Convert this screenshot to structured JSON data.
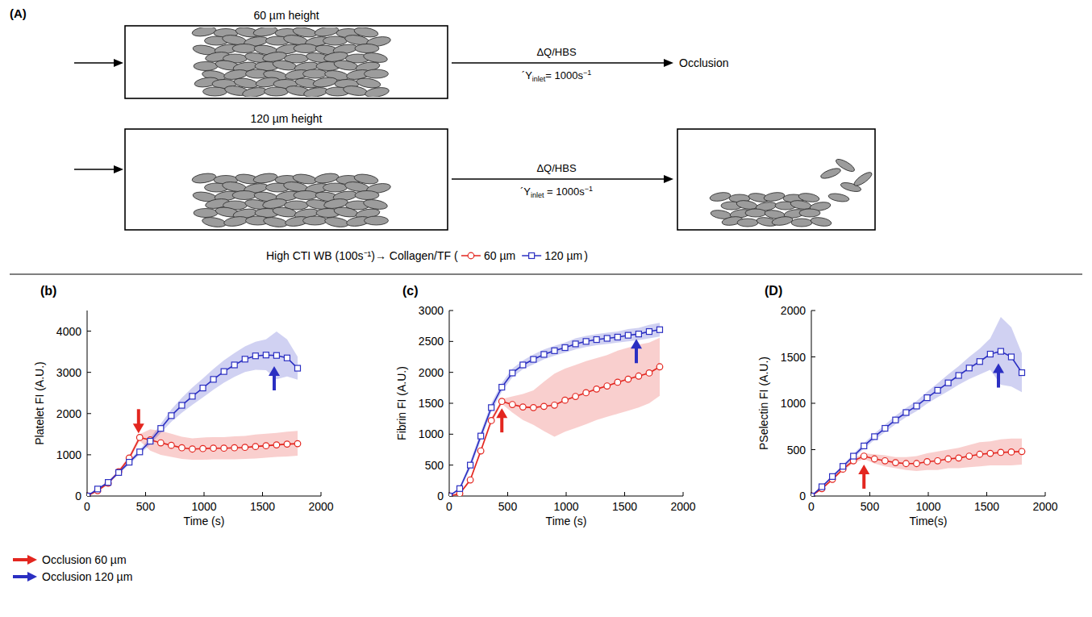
{
  "panel_a": {
    "label": "(A)",
    "channels": [
      {
        "height_label": "60 µm height",
        "flow_label": "ΔQ/HBS",
        "shear_symbol": "´Y",
        "shear_sub": "inlet",
        "shear_value": "= 1000s",
        "shear_exp": "−1",
        "outcome": "Occlusion"
      },
      {
        "height_label": "120 µm height",
        "flow_label": "ΔQ/HBS",
        "shear_symbol": "´Y",
        "shear_sub": "inlet",
        "shear_value": " = 1000s",
        "shear_exp": "−1"
      }
    ]
  },
  "header": {
    "text": "High CTI WB (100s⁻¹)→ Collagen/TF (",
    "close": ")"
  },
  "occlusion_legend": [
    {
      "label": "Occlusion 60 µm",
      "color": "#e3261f"
    },
    {
      "label": "Occlusion 120 µm",
      "color": "#2b2fc2"
    }
  ],
  "chart_data": [
    {
      "type": "line",
      "panel": "(b)",
      "x_label": "Time (s)",
      "y_label": "Platelet FI (A.U.)",
      "x": [
        0,
        90,
        180,
        270,
        360,
        450,
        540,
        630,
        720,
        810,
        900,
        990,
        1080,
        1170,
        1260,
        1350,
        1440,
        1530,
        1620,
        1710,
        1800
      ],
      "xlim": [
        0,
        2000
      ],
      "xticks": [
        0,
        500,
        1000,
        1500,
        2000
      ],
      "ylim": [
        0,
        4500
      ],
      "yticks": [
        0,
        1000,
        2000,
        3000,
        4000
      ],
      "grid": false,
      "series": [
        {
          "name": "60 µm",
          "color": "#e3261f",
          "marker": "circle",
          "values": [
            0,
            130,
            310,
            590,
            920,
            1420,
            1360,
            1290,
            1230,
            1170,
            1140,
            1150,
            1160,
            1160,
            1170,
            1180,
            1200,
            1220,
            1240,
            1260,
            1270
          ],
          "lower": [
            0,
            110,
            280,
            550,
            860,
            1340,
            1100,
            1000,
            950,
            900,
            880,
            880,
            890,
            890,
            890,
            900,
            910,
            930,
            950,
            960,
            980
          ],
          "upper": [
            0,
            150,
            340,
            630,
            980,
            1500,
            1620,
            1580,
            1510,
            1440,
            1400,
            1420,
            1430,
            1430,
            1450,
            1460,
            1490,
            1510,
            1530,
            1560,
            1580
          ],
          "occlusion": {
            "x": 440,
            "y": 1520
          }
        },
        {
          "name": "120 µm",
          "color": "#2b2fc2",
          "marker": "square",
          "values": [
            0,
            170,
            330,
            570,
            820,
            1070,
            1330,
            1640,
            1950,
            2200,
            2420,
            2620,
            2830,
            3020,
            3180,
            3320,
            3400,
            3420,
            3410,
            3350,
            3100
          ],
          "lower": [
            0,
            150,
            300,
            530,
            770,
            1010,
            1250,
            1530,
            1800,
            2020,
            2210,
            2390,
            2580,
            2750,
            2890,
            3010,
            3060,
            3050,
            2830,
            2900,
            2820
          ],
          "upper": [
            0,
            190,
            360,
            610,
            870,
            1130,
            1410,
            1750,
            2100,
            2380,
            2630,
            2850,
            3080,
            3290,
            3470,
            3630,
            3740,
            3800,
            3990,
            3800,
            3380
          ],
          "occlusion": {
            "x": 1600,
            "y": 3150
          }
        }
      ]
    },
    {
      "type": "line",
      "panel": "(c)",
      "x_label": "Time (s)",
      "y_label": "Fibrin FI (A.U.)",
      "x": [
        0,
        90,
        180,
        270,
        360,
        450,
        540,
        630,
        720,
        810,
        900,
        990,
        1080,
        1170,
        1260,
        1350,
        1440,
        1530,
        1620,
        1710,
        1800
      ],
      "xlim": [
        0,
        2000
      ],
      "xticks": [
        0,
        500,
        1000,
        1500,
        2000
      ],
      "ylim": [
        0,
        3000
      ],
      "yticks": [
        0,
        500,
        1000,
        1500,
        2000,
        2500,
        3000
      ],
      "grid": false,
      "series": [
        {
          "color": "#e3261f",
          "marker": "circle",
          "values": [
            0,
            40,
            260,
            730,
            1220,
            1530,
            1480,
            1440,
            1430,
            1450,
            1470,
            1550,
            1610,
            1670,
            1730,
            1780,
            1840,
            1890,
            1940,
            1990,
            2090
          ],
          "lower": [
            0,
            30,
            230,
            690,
            1170,
            1490,
            1350,
            1230,
            1150,
            1050,
            960,
            1040,
            1100,
            1160,
            1230,
            1280,
            1330,
            1380,
            1430,
            1500,
            1620
          ],
          "upper": [
            0,
            50,
            290,
            770,
            1270,
            1570,
            1610,
            1650,
            1710,
            1850,
            1980,
            2060,
            2120,
            2180,
            2230,
            2280,
            2350,
            2400,
            2450,
            2480,
            2560
          ],
          "occlusion": {
            "x": 450,
            "y": 1420
          }
        },
        {
          "color": "#2b2fc2",
          "marker": "square",
          "values": [
            0,
            120,
            500,
            970,
            1430,
            1760,
            1990,
            2120,
            2210,
            2290,
            2350,
            2400,
            2460,
            2500,
            2530,
            2550,
            2570,
            2600,
            2620,
            2660,
            2690
          ],
          "lower": [
            0,
            90,
            440,
            900,
            1360,
            1690,
            1920,
            2050,
            2130,
            2210,
            2270,
            2320,
            2370,
            2410,
            2440,
            2460,
            2480,
            2500,
            2520,
            2550,
            2580
          ],
          "upper": [
            0,
            150,
            560,
            1040,
            1500,
            1830,
            2060,
            2190,
            2290,
            2370,
            2430,
            2480,
            2550,
            2590,
            2620,
            2640,
            2660,
            2700,
            2720,
            2770,
            2800
          ],
          "occlusion": {
            "x": 1600,
            "y": 2540
          }
        }
      ]
    },
    {
      "type": "line",
      "panel": "(D)",
      "x_label": "Time(s)",
      "y_label": "PSelectin FI (A.U.)",
      "x": [
        0,
        90,
        180,
        270,
        360,
        450,
        540,
        630,
        720,
        810,
        900,
        990,
        1080,
        1170,
        1260,
        1350,
        1440,
        1530,
        1620,
        1710,
        1800
      ],
      "xlim": [
        0,
        2000
      ],
      "xticks": [
        0,
        500,
        1000,
        1500,
        2000
      ],
      "ylim": [
        0,
        2000
      ],
      "yticks": [
        0,
        500,
        1000,
        1500,
        2000
      ],
      "grid": false,
      "series": [
        {
          "color": "#e3261f",
          "marker": "circle",
          "values": [
            0,
            80,
            180,
            290,
            380,
            430,
            400,
            380,
            360,
            350,
            350,
            370,
            380,
            400,
            410,
            430,
            450,
            460,
            470,
            475,
            480
          ],
          "lower": [
            0,
            70,
            165,
            270,
            355,
            400,
            350,
            320,
            300,
            280,
            270,
            280,
            280,
            300,
            300,
            310,
            320,
            330,
            330,
            330,
            340
          ],
          "upper": [
            0,
            90,
            195,
            310,
            405,
            460,
            450,
            440,
            420,
            420,
            430,
            460,
            480,
            500,
            520,
            550,
            580,
            590,
            610,
            620,
            620
          ],
          "occlusion": {
            "x": 450,
            "y": 340
          }
        },
        {
          "color": "#2b2fc2",
          "marker": "square",
          "values": [
            0,
            100,
            210,
            320,
            430,
            540,
            640,
            730,
            820,
            900,
            970,
            1060,
            1140,
            1220,
            1300,
            1380,
            1450,
            1530,
            1560,
            1500,
            1330
          ],
          "lower": [
            0,
            90,
            195,
            300,
            405,
            510,
            605,
            690,
            775,
            850,
            915,
            995,
            1065,
            1130,
            1200,
            1260,
            1310,
            1360,
            1200,
            1180,
            1120
          ],
          "upper": [
            0,
            110,
            225,
            340,
            455,
            570,
            675,
            770,
            865,
            950,
            1025,
            1125,
            1215,
            1310,
            1400,
            1500,
            1590,
            1700,
            1930,
            1820,
            1540
          ],
          "occlusion": {
            "x": 1600,
            "y": 1430
          }
        }
      ]
    }
  ]
}
